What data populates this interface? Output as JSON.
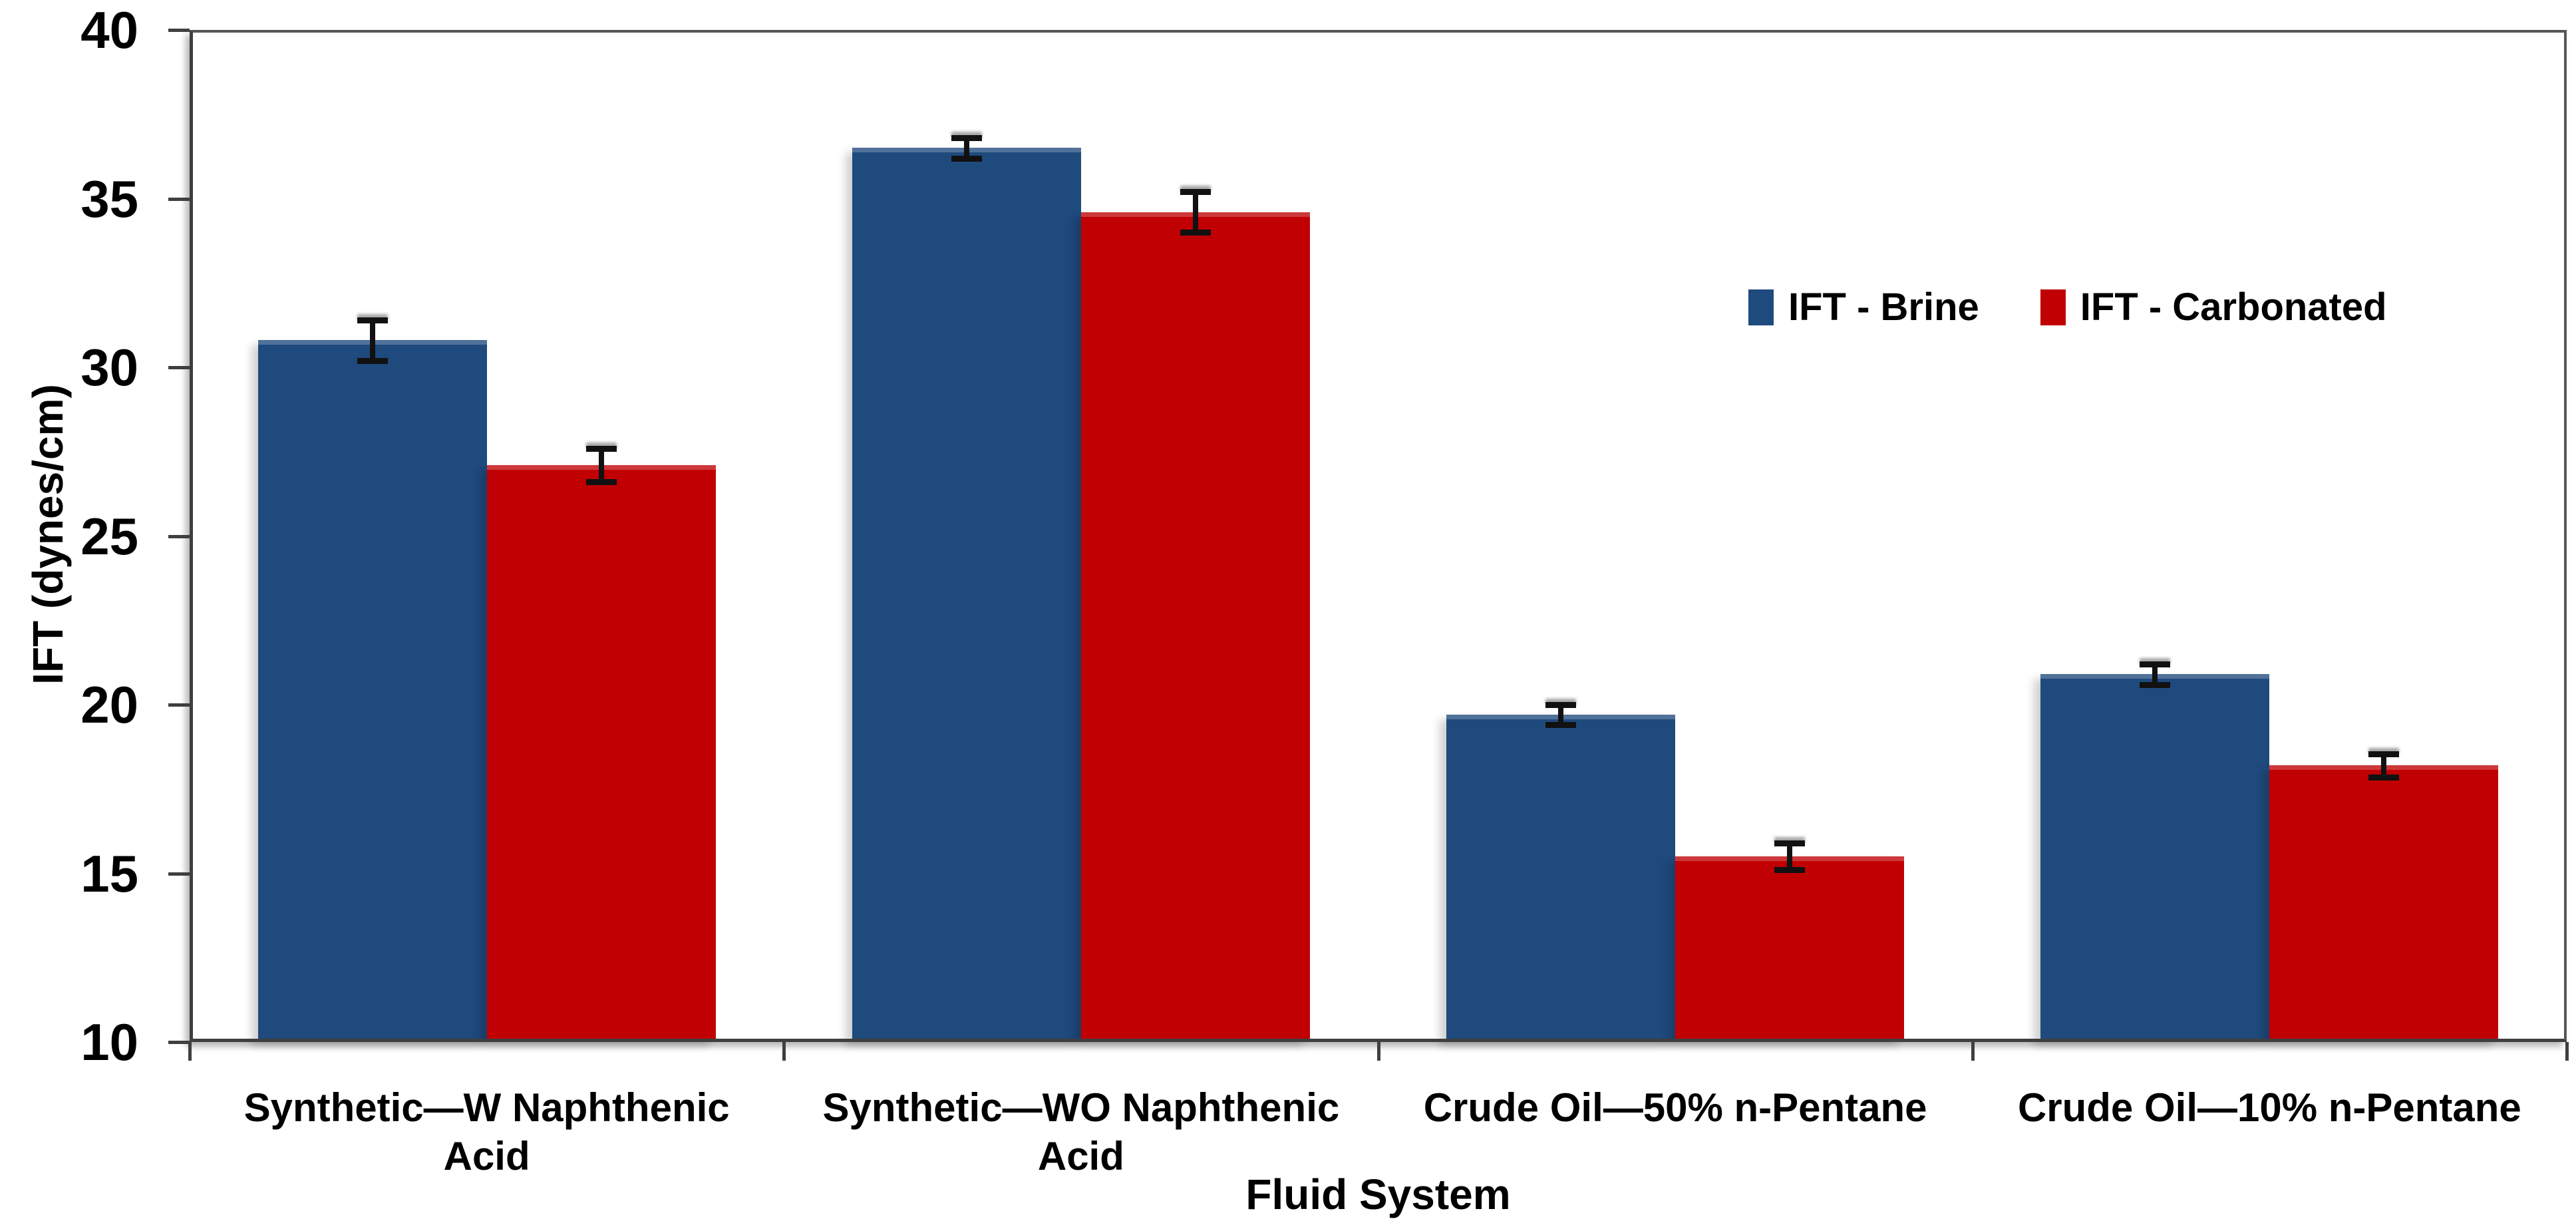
{
  "chart_data": {
    "type": "bar",
    "title": "",
    "xlabel": "Fluid System",
    "ylabel": "IFT (dynes/cm)",
    "ylim": [
      10,
      40
    ],
    "yticks": [
      40,
      35,
      30,
      25,
      20,
      15,
      10
    ],
    "grid": "off",
    "legend_position": "upper-right-inside",
    "categories": [
      [
        "Synthetic—W Naphthenic",
        "Acid"
      ],
      [
        "Synthetic—WO Naphthenic",
        "Acid"
      ],
      [
        "Crude Oil—50% n-Pentane"
      ],
      [
        "Crude Oil—10% n-Pentane"
      ]
    ],
    "series": [
      {
        "name": "IFT - Brine",
        "color": "#1F4A7D",
        "values": [
          30.8,
          36.5,
          19.7,
          20.9
        ],
        "errors": [
          0.6,
          0.3,
          0.3,
          0.3
        ]
      },
      {
        "name": "IFT - Carbonated",
        "color": "#C00003",
        "values": [
          27.1,
          34.6,
          15.5,
          18.2
        ],
        "errors": [
          0.5,
          0.6,
          0.4,
          0.35
        ]
      }
    ]
  }
}
